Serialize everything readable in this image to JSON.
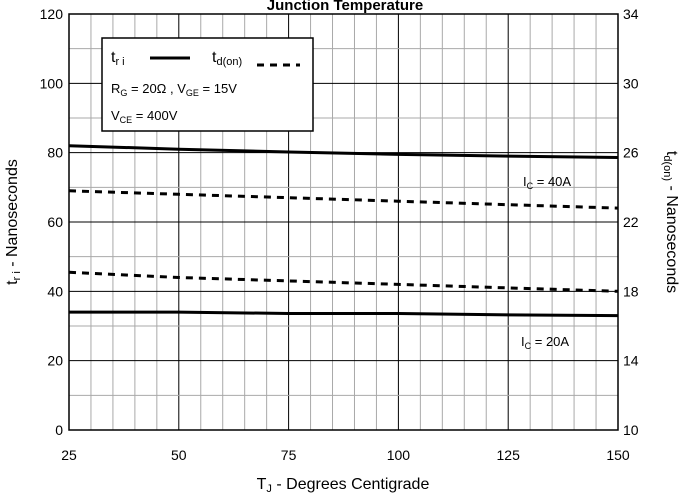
{
  "chart_data": {
    "type": "line",
    "title": "Junction Temperature",
    "xlabel": "T",
    "xlabel_sub": "J",
    "xlabel_rest": " - Degrees Centigrade",
    "ylabel_main": "t",
    "ylabel_main_sub": "r i",
    "ylabel_main_rest": " - Nanoseconds",
    "ylabel_right": "t",
    "ylabel_right_sub": "d(on)",
    "ylabel_right_rest": " - Nanoseconds",
    "xlim": [
      25,
      150
    ],
    "ylim": [
      0,
      120
    ],
    "ylim_right": [
      10,
      34
    ],
    "x_ticks": [
      25,
      50,
      75,
      100,
      125,
      150
    ],
    "y_ticks": [
      0,
      20,
      40,
      60,
      80,
      100,
      120
    ],
    "y2_ticks": [
      10,
      14,
      18,
      22,
      26,
      30,
      34
    ],
    "grid": true,
    "legend": {
      "tri_label": "t",
      "tri_sub": "r i",
      "td_label": "t",
      "td_sub": "d(on)",
      "cond1_pre": "R",
      "cond1_sub": "G",
      "cond1_mid": " = 20Ω ,  V",
      "cond1_sub2": "GE",
      "cond1_post": " = 15V",
      "cond2_pre": "V",
      "cond2_sub": "CE",
      "cond2_post": " = 400V",
      "position": "top-left"
    },
    "annotations": [
      {
        "pre": "I",
        "sub": "C",
        "post": " = 40A"
      },
      {
        "pre": "I",
        "sub": "C",
        "post": " = 20A"
      }
    ],
    "series": [
      {
        "name": "t r i",
        "condition": "I C = 40A",
        "axis": "left",
        "style": "solid",
        "x": [
          25,
          50,
          75,
          100,
          125,
          150
        ],
        "y": [
          82,
          81,
          80.2,
          79.5,
          79,
          78.6
        ]
      },
      {
        "name": "t d(on)",
        "condition": "I C = 40A",
        "axis": "right",
        "style": "dashed",
        "x": [
          25,
          50,
          75,
          100,
          125,
          150
        ],
        "y": [
          23.8,
          23.6,
          23.4,
          23.2,
          23.0,
          22.8
        ]
      },
      {
        "name": "t d(on)",
        "condition": "I C = 20A",
        "axis": "right",
        "style": "dashed",
        "x": [
          25,
          50,
          75,
          100,
          125,
          150
        ],
        "y": [
          19.1,
          18.8,
          18.6,
          18.4,
          18.2,
          18.0
        ]
      },
      {
        "name": "t r i",
        "condition": "I C = 20A",
        "axis": "left",
        "style": "solid",
        "x": [
          25,
          50,
          75,
          100,
          125,
          150
        ],
        "y": [
          34,
          34,
          33.6,
          33.6,
          33.2,
          33
        ]
      }
    ]
  }
}
